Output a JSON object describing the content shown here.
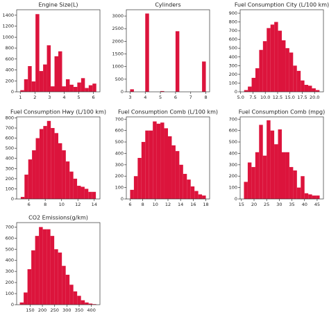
{
  "chart_data": [
    {
      "type": "histogram",
      "title": "Engine Size(L)",
      "color": "#dc143c",
      "bins": [
        1.0,
        1.26,
        1.52,
        1.78,
        2.04,
        2.3,
        2.56,
        2.82,
        3.08,
        3.34,
        3.6,
        3.86,
        4.12,
        4.38,
        4.64,
        4.9,
        5.16,
        5.42,
        5.68,
        5.94,
        6.2
      ],
      "counts": [
        30,
        230,
        470,
        190,
        1420,
        380,
        500,
        850,
        100,
        650,
        740,
        100,
        230,
        130,
        90,
        170,
        250,
        70,
        120,
        150
      ],
      "xlim": [
        0.75,
        6.45
      ],
      "xticks": [
        1,
        2,
        3,
        4,
        5,
        6
      ],
      "ylim": [
        0,
        1500
      ],
      "yticks": [
        0,
        200,
        400,
        600,
        800,
        1000,
        1200,
        1400
      ]
    },
    {
      "type": "histogram",
      "title": "Cylinders",
      "color": "#dc143c",
      "bins": [
        3.0,
        3.25,
        3.5,
        3.75,
        4.0,
        4.25,
        4.5,
        4.75,
        5.0,
        5.25,
        5.5,
        5.75,
        6.0,
        6.25,
        6.5,
        6.75,
        7.0,
        7.25,
        7.5,
        7.75,
        8.0
      ],
      "counts": [
        100,
        0,
        0,
        0,
        3100,
        0,
        0,
        0,
        30,
        0,
        0,
        0,
        2400,
        0,
        0,
        0,
        0,
        0,
        0,
        1200
      ],
      "xlim": [
        2.75,
        8.25
      ],
      "xticks": [
        3,
        4,
        5,
        6,
        7,
        8
      ],
      "ylim": [
        0,
        3250
      ],
      "yticks": [
        0,
        500,
        1000,
        1500,
        2000,
        2500,
        3000
      ]
    },
    {
      "type": "histogram",
      "title": "Fuel Consumption City (L/100 km)",
      "color": "#dc143c",
      "bins": [
        5.7,
        6.465,
        7.23,
        7.995,
        8.76,
        9.525,
        10.29,
        11.055,
        11.82,
        12.585,
        13.35,
        14.115,
        14.88,
        15.645,
        16.41,
        17.175,
        17.94,
        18.705,
        19.47,
        20.235,
        21.0
      ],
      "counts": [
        20,
        60,
        160,
        270,
        480,
        580,
        730,
        770,
        800,
        700,
        590,
        500,
        450,
        300,
        240,
        130,
        80,
        70,
        40,
        20
      ],
      "xlim": [
        4.9,
        21.8
      ],
      "xticks": [
        {
          "value": 5,
          "label": "5.0"
        },
        7.5,
        {
          "value": 10,
          "label": "10.0"
        },
        12.5,
        {
          "value": 15,
          "label": "15.0"
        },
        17.5,
        {
          "value": 20,
          "label": "20.0"
        }
      ],
      "ylim": [
        0,
        940
      ],
      "yticks": [
        0,
        100,
        200,
        300,
        400,
        500,
        600,
        700,
        800,
        900
      ]
    },
    {
      "type": "histogram",
      "title": "Fuel Consumption Hwy (L/100 km)",
      "color": "#dc143c",
      "bins": [
        5.0,
        5.46,
        5.92,
        6.38,
        6.84,
        7.3,
        7.76,
        8.22,
        8.68,
        9.14,
        9.6,
        10.06,
        10.52,
        10.98,
        11.44,
        11.9,
        12.36,
        12.82,
        13.28,
        13.74,
        14.2
      ],
      "counts": [
        20,
        240,
        390,
        480,
        600,
        690,
        720,
        770,
        700,
        650,
        550,
        480,
        370,
        270,
        200,
        130,
        120,
        100,
        70,
        70
      ],
      "xlim": [
        4.5,
        14.7
      ],
      "xticks": [
        6,
        8,
        10,
        12,
        14
      ],
      "ylim": [
        0,
        810
      ],
      "yticks": [
        0,
        100,
        200,
        300,
        400,
        500,
        600,
        700,
        800
      ]
    },
    {
      "type": "histogram",
      "title": "Fuel Consumption Comb (L/100 km)",
      "color": "#dc143c",
      "bins": [
        6.0,
        6.6,
        7.2,
        7.8,
        8.4,
        9.0,
        9.6,
        10.2,
        10.8,
        11.4,
        12.0,
        12.6,
        13.2,
        13.8,
        14.4,
        15.0,
        15.6,
        16.2,
        16.8,
        17.4,
        18.0
      ],
      "counts": [
        80,
        200,
        360,
        500,
        600,
        600,
        680,
        660,
        670,
        620,
        550,
        470,
        420,
        300,
        220,
        170,
        110,
        70,
        40,
        30
      ],
      "xlim": [
        5.4,
        18.6
      ],
      "xticks": [
        6,
        8,
        10,
        12,
        14,
        16,
        18
      ],
      "ylim": [
        0,
        720
      ],
      "yticks": [
        0,
        100,
        200,
        300,
        400,
        500,
        600,
        700
      ]
    },
    {
      "type": "histogram",
      "title": "Fuel Consumption Comb (mpg)",
      "color": "#dc143c",
      "bins": [
        16.0,
        17.5,
        19.0,
        20.5,
        22.0,
        23.5,
        25.0,
        26.5,
        28.0,
        29.5,
        31.0,
        32.5,
        34.0,
        35.5,
        37.0,
        38.5,
        40.0,
        41.5,
        43.0,
        44.5,
        46.0
      ],
      "counts": [
        150,
        320,
        280,
        410,
        650,
        380,
        690,
        600,
        480,
        610,
        410,
        410,
        280,
        250,
        100,
        200,
        50,
        40,
        30,
        30
      ],
      "xlim": [
        14.5,
        47.5
      ],
      "xticks": [
        15,
        20,
        25,
        30,
        35,
        40,
        45
      ],
      "ylim": [
        0,
        720
      ],
      "yticks": [
        0,
        100,
        200,
        300,
        400,
        500,
        600,
        700
      ]
    },
    {
      "type": "histogram",
      "title": "CO2 Emissions(g/km)",
      "color": "#dc143c",
      "bins": [
        108,
        123.6,
        139.2,
        154.8,
        170.4,
        186,
        201.6,
        217.2,
        232.8,
        248.4,
        264,
        279.6,
        295.2,
        310.8,
        326.4,
        342,
        357.6,
        373.2,
        388.8,
        404.4,
        420
      ],
      "counts": [
        20,
        110,
        320,
        490,
        620,
        700,
        680,
        680,
        620,
        500,
        470,
        350,
        270,
        180,
        120,
        80,
        40,
        20,
        10,
        5
      ],
      "xlim": [
        95,
        435
      ],
      "xticks": [
        150,
        200,
        250,
        300,
        350,
        400
      ],
      "ylim": [
        0,
        740
      ],
      "yticks": [
        0,
        100,
        200,
        300,
        400,
        500,
        600,
        700
      ]
    }
  ]
}
